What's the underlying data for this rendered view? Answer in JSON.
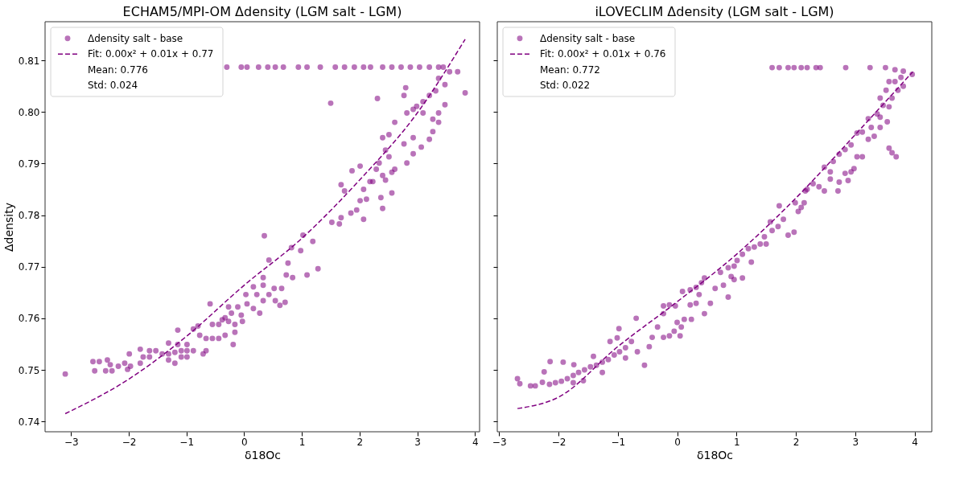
{
  "chart_data": [
    {
      "type": "scatter",
      "title": "ECHAM5/MPI-OM Δdensity (LGM salt - LGM)",
      "xlabel": "δ18Oc",
      "ylabel": "Δdensity",
      "xlim": [
        -3.45,
        4.08
      ],
      "ylim": [
        0.738,
        0.8175
      ],
      "xticks": [
        -3,
        -2,
        -1,
        0,
        1,
        2,
        3,
        4
      ],
      "yticks": [
        0.74,
        0.75,
        0.76,
        0.77,
        0.78,
        0.79,
        {
          "value": 0.8,
          "label": "0.80"
        },
        0.81
      ],
      "grid": false,
      "legend": "top left",
      "annotations": [
        "Mean: 0.776",
        "Std: 0.024"
      ],
      "series": [
        {
          "name": "Δdensity salt - base",
          "marker": "circle",
          "color": "#800080",
          "x": [
            -3.1,
            -0.3,
            -0.05,
            0.05,
            0.25,
            0.41,
            0.54,
            0.68,
            0.94,
            1.09,
            1.32,
            1.58,
            1.74,
            1.91,
            2.07,
            2.19,
            2.4,
            2.56,
            2.72,
            2.88,
            3.04,
            3.21,
            3.37,
            3.45,
            3.56,
            3.7,
            3.83,
            1.5,
            2.31,
            3.37,
            3.48,
            3.32,
            3.21,
            3.1,
            2.99,
            2.8,
            2.77,
            2.82,
            2.93,
            3.1,
            3.27,
            3.37,
            3.48,
            3.37,
            3.27,
            3.21,
            3.07,
            2.93,
            2.82,
            2.61,
            2.77,
            2.93,
            2.61,
            2.51,
            2.4,
            2.45,
            2.51,
            2.34,
            2.29,
            2.4,
            2.45,
            2.23,
            2.07,
            2.18,
            2.01,
            1.87,
            1.68,
            1.74,
            2.01,
            2.12,
            2.37,
            2.4,
            2.07,
            1.95,
            1.85,
            1.68,
            1.52,
            1.65,
            2.56,
            2.56,
            1.02,
            0.35,
            1.19,
            0.82,
            0.98,
            0.43,
            0.76,
            1.28,
            1.09,
            0.73,
            0.84,
            0.33,
            0.33,
            0.52,
            0.65,
            0.16,
            0.22,
            0.43,
            0.03,
            0.33,
            0.54,
            0.71,
            0.62,
            0.05,
            -0.11,
            -0.27,
            0.16,
            0.27,
            -0.05,
            -0.22,
            -0.33,
            -0.03,
            -0.16,
            -0.27,
            -0.38,
            -0.44,
            -0.55,
            -0.59,
            -0.16,
            -0.19,
            -0.33,
            -0.44,
            -0.55,
            -0.66,
            -0.77,
            -0.88,
            -0.8,
            -0.66,
            -0.71,
            -0.88,
            -0.99,
            -1.09,
            -1.2,
            -1.31,
            -1.42,
            -0.99,
            -1.15,
            -1.15,
            -1.31,
            -1.53,
            -1.64,
            -1.75,
            -1.8,
            -1.64,
            -1.8,
            -1.97,
            -1.99,
            -2.07,
            -2.02,
            -2.18,
            -2.29,
            -2.4,
            -2.37,
            -2.51,
            -2.62,
            -2.59,
            -2.32,
            -1.2,
            -0.99,
            -1.09,
            -1.31
          ],
          "values": [
            0.7492,
            0.8087,
            0.8087,
            0.8087,
            0.8087,
            0.8087,
            0.8087,
            0.8087,
            0.8087,
            0.8087,
            0.8087,
            0.8087,
            0.8087,
            0.8087,
            0.8087,
            0.8087,
            0.8087,
            0.8087,
            0.8087,
            0.8087,
            0.8087,
            0.8087,
            0.8087,
            0.8087,
            0.8078,
            0.8078,
            0.8037,
            0.8017,
            0.8026,
            0.8065,
            0.8053,
            0.8041,
            0.8032,
            0.802,
            0.8011,
            0.8047,
            0.8032,
            0.7998,
            0.8005,
            0.7998,
            0.7986,
            0.7998,
            0.8014,
            0.798,
            0.7962,
            0.7947,
            0.7932,
            0.7919,
            0.7901,
            0.7889,
            0.7938,
            0.795,
            0.798,
            0.7956,
            0.795,
            0.7926,
            0.7913,
            0.7901,
            0.7889,
            0.7877,
            0.7868,
            0.7865,
            0.785,
            0.7865,
            0.7895,
            0.7886,
            0.7859,
            0.7847,
            0.7828,
            0.7831,
            0.7834,
            0.7813,
            0.7792,
            0.781,
            0.7804,
            0.7795,
            0.7786,
            0.7783,
            0.7843,
            0.7883,
            0.7761,
            0.776,
            0.7749,
            0.7737,
            0.7731,
            0.7713,
            0.7707,
            0.7696,
            0.7684,
            0.7684,
            0.7679,
            0.7679,
            0.7664,
            0.7658,
            0.7658,
            0.7661,
            0.7646,
            0.7646,
            0.7646,
            0.7634,
            0.7634,
            0.7631,
            0.7625,
            0.7628,
            0.7622,
            0.7622,
            0.7619,
            0.761,
            0.7606,
            0.761,
            0.7601,
            0.7594,
            0.7588,
            0.7594,
            0.7597,
            0.7588,
            0.7588,
            0.7628,
            0.7573,
            0.7549,
            0.7567,
            0.7561,
            0.7561,
            0.7561,
            0.7567,
            0.7579,
            0.7585,
            0.7537,
            0.7531,
            0.7537,
            0.7537,
            0.7537,
            0.7534,
            0.7531,
            0.7531,
            0.7549,
            0.7549,
            0.7577,
            0.7552,
            0.7537,
            0.7537,
            0.7525,
            0.754,
            0.7525,
            0.7513,
            0.7507,
            0.7531,
            0.7513,
            0.7501,
            0.7507,
            0.7498,
            0.7498,
            0.7519,
            0.7516,
            0.7516,
            0.7498,
            0.751,
            0.7513,
            0.7525,
            0.7525,
            0.7519
          ]
        },
        {
          "name": "Fit: 0.00x² + 0.01x + 0.77",
          "type": "line",
          "marker": "none",
          "line_style": "dashed",
          "color": "#800080",
          "x": [
            -3.1,
            -2,
            -1,
            0,
            1,
            2,
            3,
            3.83
          ],
          "values": [
            0.7415,
            0.7482,
            0.7565,
            0.7664,
            0.7755,
            0.7868,
            0.7998,
            0.8141
          ]
        }
      ]
    },
    {
      "type": "scatter",
      "title": "iLOVECLIM Δdensity (LGM salt - LGM)",
      "xlabel": "δ18Oc",
      "xlim": [
        -3.03,
        4.29
      ],
      "ylim": [
        0.738,
        0.8175
      ],
      "xticks": [
        -3,
        -2,
        -1,
        0,
        1,
        2,
        3,
        4
      ],
      "yticks": [
        0.74,
        0.75,
        0.76,
        0.77,
        0.78,
        0.79,
        0.8,
        0.81
      ],
      "tick_labels": "x",
      "grid": false,
      "legend": "top left",
      "annotations": [
        "Mean: 0.772",
        "Std: 0.022"
      ],
      "series": [
        {
          "name": "Δdensity salt - base",
          "marker": "circle",
          "color": "#800080",
          "x": [
            1.6,
            1.72,
            1.87,
            1.97,
            2.09,
            2.19,
            2.34,
            2.41,
            2.84,
            3.25,
            3.51,
            3.67,
            3.81,
            3.96,
            3.77,
            3.67,
            3.57,
            3.81,
            3.72,
            3.52,
            3.42,
            3.62,
            3.47,
            3.57,
            3.37,
            3.22,
            3.42,
            3.54,
            3.27,
            3.12,
            3.03,
            3.42,
            3.32,
            3.22,
            3.57,
            3.62,
            3.69,
            2.93,
            2.83,
            2.73,
            2.63,
            3.03,
            3.12,
            2.48,
            2.58,
            2.98,
            2.93,
            2.83,
            2.88,
            2.73,
            2.58,
            2.71,
            2.29,
            2.19,
            2.39,
            2.48,
            2.16,
            1.99,
            2.14,
            2.09,
            2.04,
            1.72,
            1.57,
            1.79,
            1.7,
            1.6,
            1.47,
            1.97,
            1.87,
            1.5,
            1.4,
            1.3,
            1.2,
            1.25,
            1.1,
            1.01,
            0.96,
            0.86,
            1.1,
            0.96,
            0.91,
            0.73,
            0.78,
            0.64,
            0.86,
            0.46,
            0.41,
            0.32,
            0.22,
            0.09,
            0.37,
            0.46,
            0.56,
            0.32,
            0.22,
            -0.03,
            -0.13,
            -0.23,
            0.0,
            0.12,
            0.07,
            0.24,
            -0.23,
            -0.33,
            -0.42,
            -0.23,
            -0.13,
            -0.05,
            0.05,
            -0.69,
            -0.47,
            -0.55,
            -0.98,
            -1.01,
            -1.13,
            -1.41,
            -0.77,
            -0.87,
            -0.97,
            -1.06,
            -1.16,
            -1.26,
            -1.36,
            -1.46,
            -1.56,
            -1.66,
            -1.75,
            -1.85,
            -1.95,
            -2.05,
            -2.15,
            -1.58,
            -1.26,
            -1.75,
            -0.87,
            -0.67,
            -2.14,
            -1.92,
            -1.74,
            -2.24,
            -2.69,
            -2.65,
            -2.47,
            -2.39,
            -2.27
          ],
          "values": [
            0.8086,
            0.8086,
            0.8086,
            0.8086,
            0.8086,
            0.8086,
            0.8086,
            0.8086,
            0.8086,
            0.8086,
            0.8086,
            0.8082,
            0.8079,
            0.8073,
            0.8067,
            0.8059,
            0.8059,
            0.805,
            0.8042,
            0.8042,
            0.8027,
            0.8027,
            0.8013,
            0.801,
            0.7996,
            0.7987,
            0.799,
            0.7981,
            0.797,
            0.7961,
            0.7959,
            0.797,
            0.7953,
            0.7947,
            0.793,
            0.7921,
            0.7913,
            0.7936,
            0.7927,
            0.7918,
            0.7904,
            0.7913,
            0.7913,
            0.7893,
            0.7884,
            0.789,
            0.7884,
            0.7881,
            0.7867,
            0.7864,
            0.787,
            0.7847,
            0.7861,
            0.785,
            0.7855,
            0.7847,
            0.7847,
            0.7824,
            0.7824,
            0.7815,
            0.7807,
            0.7818,
            0.7787,
            0.7792,
            0.7778,
            0.777,
            0.7758,
            0.7767,
            0.7761,
            0.7744,
            0.7744,
            0.7738,
            0.7735,
            0.7709,
            0.7724,
            0.7712,
            0.7701,
            0.7698,
            0.7678,
            0.7675,
            0.7681,
            0.7689,
            0.7664,
            0.7658,
            0.7641,
            0.7678,
            0.7669,
            0.766,
            0.7655,
            0.7652,
            0.7646,
            0.7609,
            0.7629,
            0.7629,
            0.7626,
            0.7624,
            0.7626,
            0.7624,
            0.7592,
            0.7598,
            0.7583,
            0.7598,
            0.7609,
            0.7583,
            0.7563,
            0.7563,
            0.7566,
            0.7575,
            0.7566,
            0.76,
            0.7545,
            0.7509,
            0.758,
            0.7562,
            0.7555,
            0.7526,
            0.7555,
            0.7543,
            0.7535,
            0.7529,
            0.752,
            0.7515,
            0.7509,
            0.7506,
            0.75,
            0.7495,
            0.7489,
            0.7483,
            0.7478,
            0.7475,
            0.7472,
            0.7479,
            0.7495,
            0.7475,
            0.7523,
            0.7535,
            0.7516,
            0.7515,
            0.751,
            0.7496,
            0.7483,
            0.7473,
            0.7469,
            0.7469,
            0.7476
          ]
        },
        {
          "name": "Fit: 0.00x² + 0.01x + 0.76",
          "type": "line",
          "marker": "none",
          "line_style": "dashed",
          "color": "#800080",
          "x": [
            -2.69,
            -2,
            -1,
            0,
            1,
            2,
            3,
            3.97
          ],
          "values": [
            0.7425,
            0.7447,
            0.7545,
            0.7632,
            0.7724,
            0.7833,
            0.7956,
            0.8078
          ]
        }
      ]
    }
  ]
}
